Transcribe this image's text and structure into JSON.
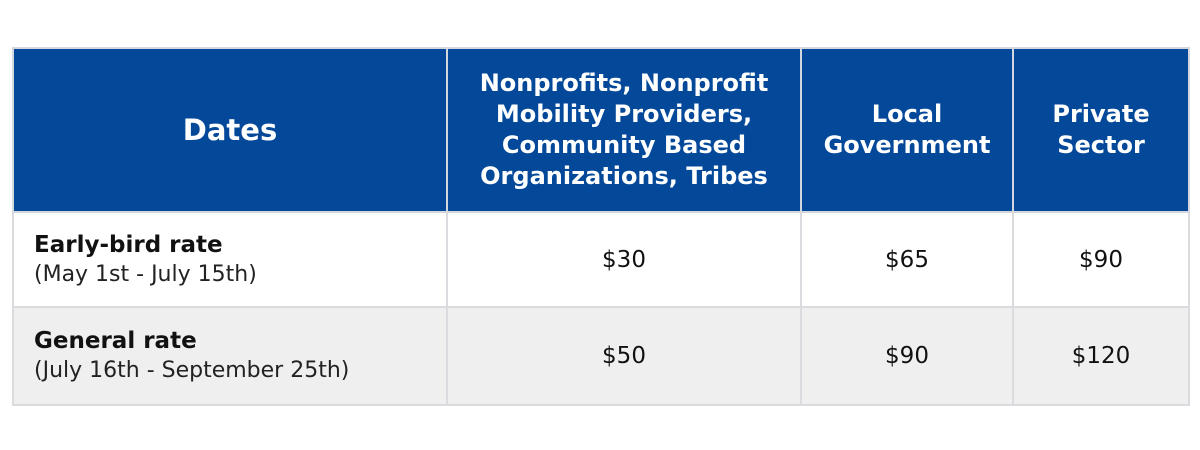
{
  "header": {
    "dates": "Dates",
    "nonprofits": "Nonprofits, Nonprofit Mobility Providers, Community Based Organizations, Tribes",
    "local_government": "Local Government",
    "private_sector": "Private Sector"
  },
  "rows": [
    {
      "name": "Early-bird rate",
      "range": "(May 1st - July 15th)",
      "nonprofits": "$30",
      "local_government": "$65",
      "private_sector": "$90"
    },
    {
      "name": "General rate",
      "range": "(July 16th - September 25th)",
      "nonprofits": "$50",
      "local_government": "$90",
      "private_sector": "$120"
    }
  ],
  "colors": {
    "header_bg": "#04489a",
    "header_text": "#ffffff",
    "alt_row_bg": "#efefef",
    "border": "#d9dbdf"
  }
}
